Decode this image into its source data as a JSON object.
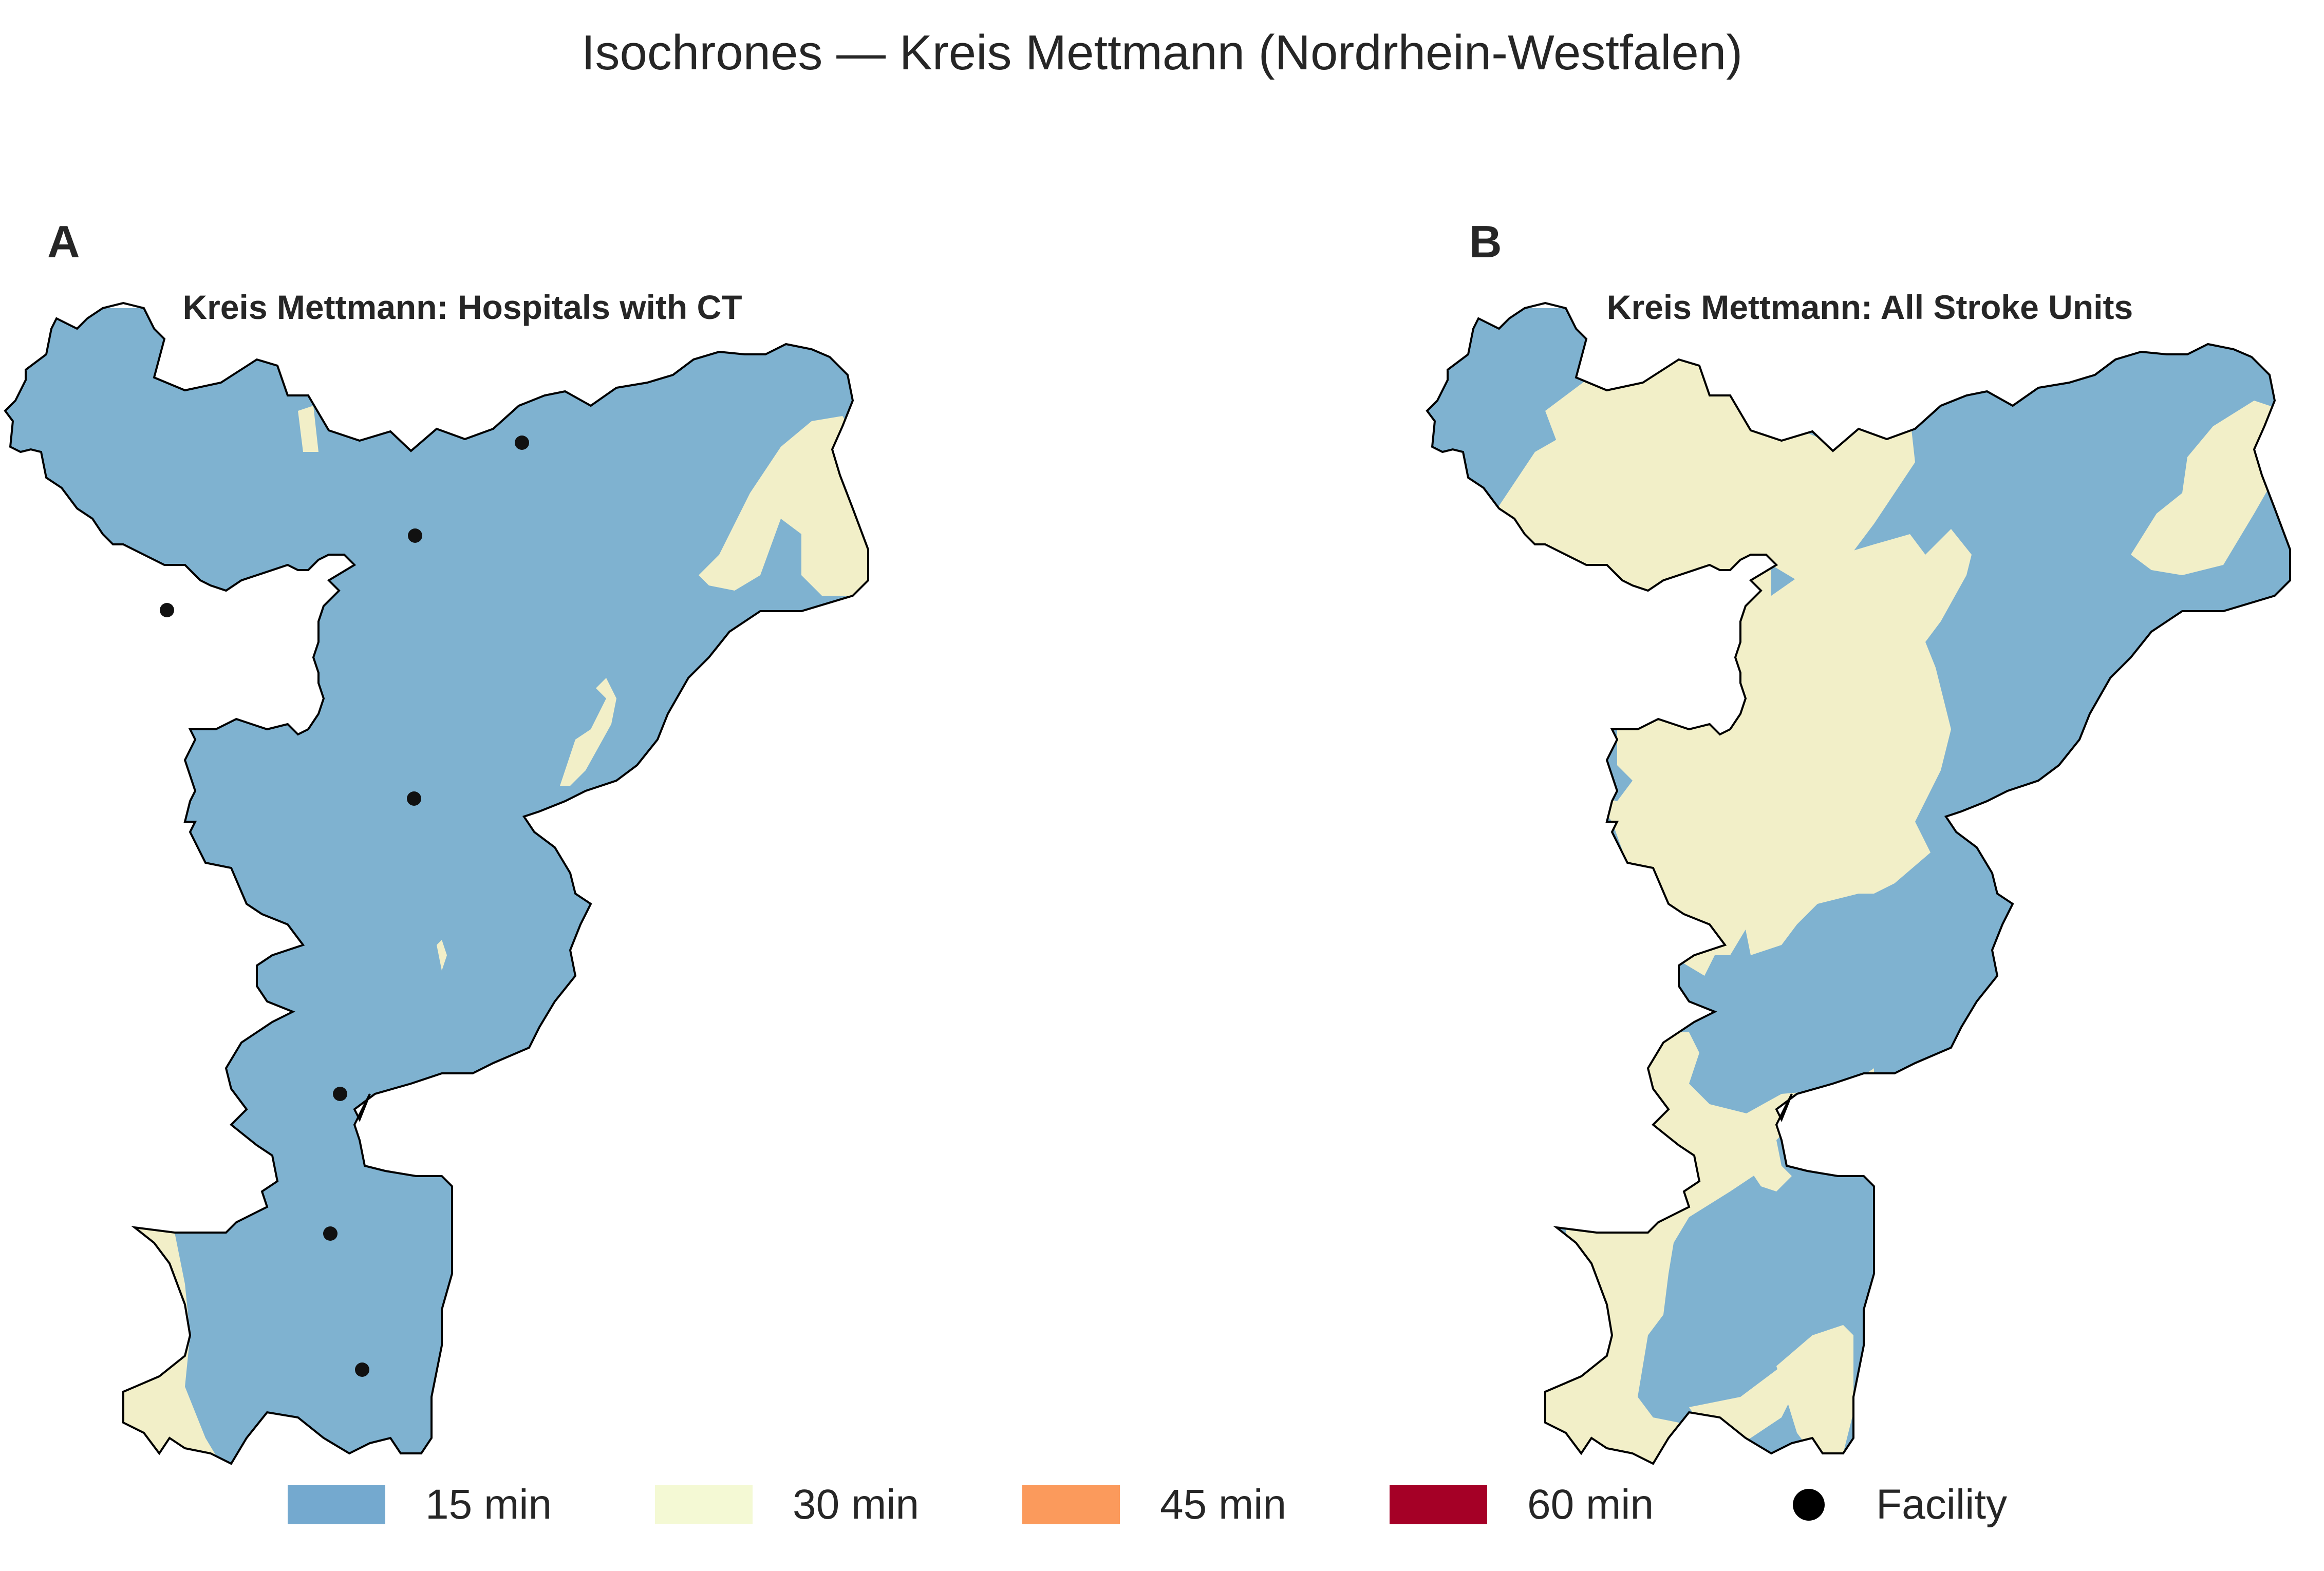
{
  "figure": {
    "title": "Isochrones — Kreis Mettmann (Nordrhein-Westfalen)"
  },
  "panels": [
    {
      "letter": "A",
      "title": "Kreis Mettmann: Hospitals with CT"
    },
    {
      "letter": "B",
      "title": "Kreis Mettmann: All Stroke Units"
    }
  ],
  "legend": {
    "items": [
      {
        "label": "15 min",
        "color": "#74a9cf",
        "kind": "patch"
      },
      {
        "label": "30 min",
        "color": "#f4f9d4",
        "kind": "patch"
      },
      {
        "label": "45 min",
        "color": "#fb9a5c",
        "kind": "patch"
      },
      {
        "label": "60 min",
        "color": "#a50026",
        "kind": "patch"
      },
      {
        "label": "Facility",
        "color": "#000000",
        "kind": "marker"
      }
    ]
  },
  "colors": {
    "zone_15": "#7fb2d0",
    "zone_30": "#f2efc8",
    "boundary": "#000000",
    "facility": "#111111"
  }
}
